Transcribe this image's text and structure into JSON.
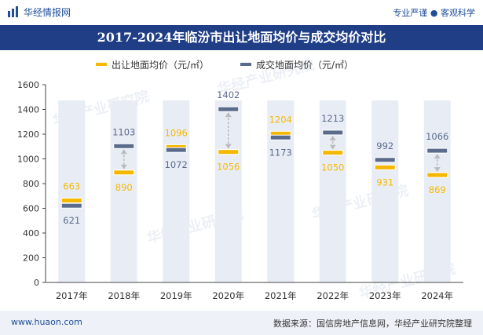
{
  "header": {
    "brand": "华经情报网",
    "slogan": "专业严谨 ● 客观科学"
  },
  "title": "2017-2024年临汾市出让地面均价与成交均价对比",
  "footer": {
    "website": "www.huaon.com",
    "source": "数据来源：国信房地产信息网，华经产业研究院整理"
  },
  "watermark": "华经产业研究院",
  "chart_data": {
    "type": "range-dumbbell",
    "title": "2017-2024年临汾市出让地面均价与成交均价对比",
    "categories": [
      "2017年",
      "2018年",
      "2019年",
      "2020年",
      "2021年",
      "2022年",
      "2023年",
      "2024年"
    ],
    "series": [
      {
        "name": "出让地面均价（元/㎡）",
        "color": "#f5b800",
        "label_color": "#f5b800",
        "values": [
          663,
          890,
          1096,
          1056,
          1204,
          1050,
          931,
          869
        ]
      },
      {
        "name": "成交地面均价（元/㎡）",
        "color": "#5a6b8c",
        "label_color": "#5a6b8c",
        "values": [
          621,
          1103,
          1072,
          1402,
          1173,
          1213,
          992,
          1066
        ]
      }
    ],
    "ylim": [
      0,
      1600
    ],
    "yticks": [
      0,
      200,
      400,
      600,
      800,
      1000,
      1200,
      1400,
      1600
    ],
    "xlabel": "",
    "ylabel": "",
    "legend_position": "top",
    "background_column_color": "#e8edf5",
    "arrow_color": "#bbbbbb"
  }
}
